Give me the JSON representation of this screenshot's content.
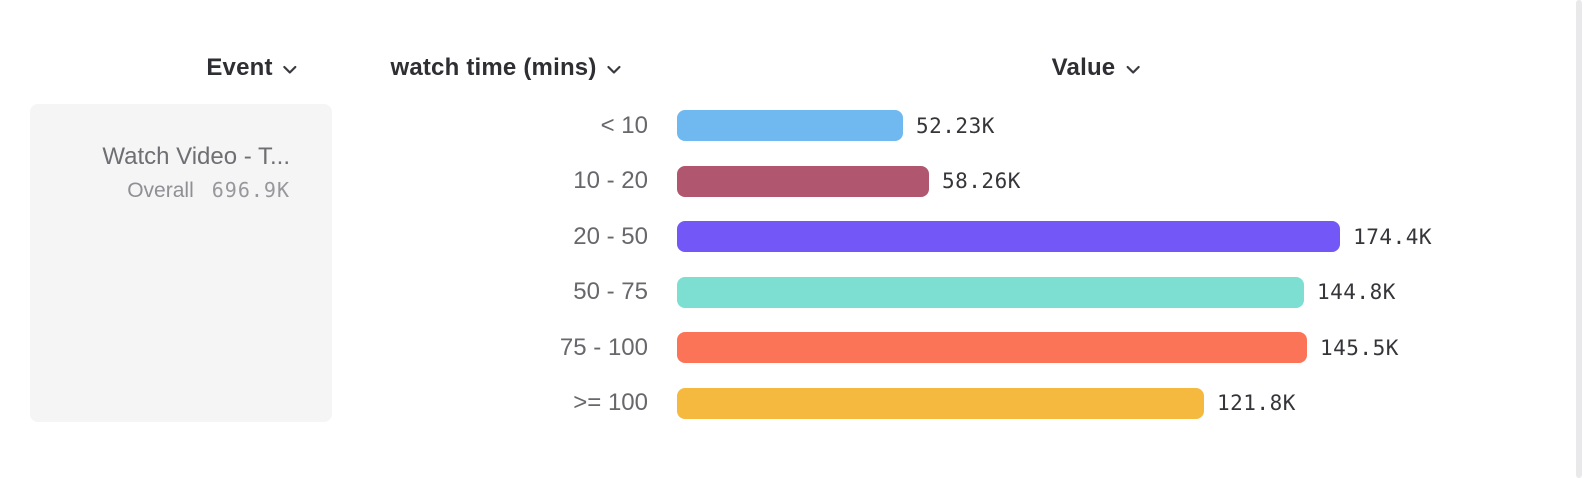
{
  "header_row": {
    "columns": [
      {
        "label": "Event"
      },
      {
        "label": "watch time (mins)"
      },
      {
        "label": "Value"
      }
    ]
  },
  "event_card": {
    "title": "Watch Video - T...",
    "metric_label": "Overall",
    "metric_value": "696.9K"
  },
  "chart_data": {
    "type": "bar",
    "orientation": "horizontal",
    "xlabel": "Value",
    "ylabel": "watch time (mins)",
    "categories": [
      "< 10",
      "10 - 20",
      "20 - 50",
      "50 - 75",
      "75 - 100",
      ">= 100"
    ],
    "values": [
      52230,
      58260,
      174400,
      144800,
      145500,
      121800
    ],
    "value_labels": [
      "52.23K",
      "58.26K",
      "174.4K",
      "144.8K",
      "145.5K",
      "121.8K"
    ],
    "bar_colors": [
      "#70b9f0",
      "#b0576f",
      "#7457f7",
      "#7cdfd2",
      "#fc7458",
      "#f6b93f"
    ],
    "total_label": "Overall",
    "total_value": "696.9K",
    "grid": false,
    "legend": false
  }
}
